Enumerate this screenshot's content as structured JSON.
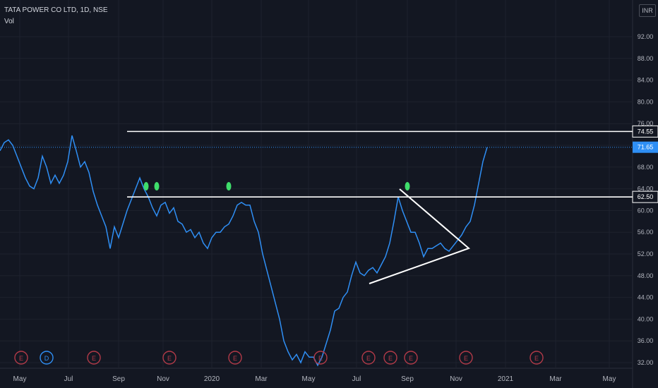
{
  "header": {
    "symbol_line": "TATA POWER CO LTD, 1D, NSE",
    "indicator": "Vol",
    "currency": "INR"
  },
  "colors": {
    "background": "#131722",
    "price_line": "#2f8ff5",
    "level_line": "#ffffff",
    "volume_up": "#0f5a4a",
    "volume_down": "#7a2a33",
    "signal_dot": "#3fdd6b",
    "event_red": "#b23a48",
    "event_blue": "#2f8ff5",
    "axis_text": "#b2b5be",
    "grid": "#1e222d"
  },
  "chart_data": {
    "type": "line",
    "title": "TATA POWER CO LTD, 1D, NSE",
    "xlabel": "",
    "ylabel": "",
    "y_ticks": [
      "92.00",
      "88.00",
      "84.00",
      "80.00",
      "76.00",
      "72.00",
      "68.00",
      "64.00",
      "60.00",
      "56.00",
      "52.00",
      "48.00",
      "44.00",
      "40.00",
      "36.00",
      "32.00"
    ],
    "x_ticks": [
      "May",
      "Jul",
      "Sep",
      "Nov",
      "2020",
      "Mar",
      "May",
      "Jul",
      "Sep",
      "Nov",
      "2021",
      "Mar",
      "May"
    ],
    "ylim": [
      30.8,
      96.0
    ],
    "grid": true,
    "price_labels": {
      "resistance": "74.55",
      "current": "71.65",
      "support": "62.50"
    },
    "series": [
      {
        "values": [
          [
            0.0,
            71.0
          ],
          [
            0.5,
            72.5
          ],
          [
            1.0,
            73.0
          ],
          [
            1.5,
            72.0
          ],
          [
            2.0,
            70.0
          ],
          [
            2.5,
            68.0
          ],
          [
            3.0,
            66.0
          ],
          [
            3.5,
            64.5
          ],
          [
            4.0,
            64.0
          ],
          [
            4.5,
            66.0
          ],
          [
            5.0,
            70.0
          ],
          [
            5.5,
            68.0
          ],
          [
            6.0,
            65.0
          ],
          [
            6.5,
            66.5
          ],
          [
            7.0,
            65.0
          ],
          [
            7.5,
            66.5
          ],
          [
            8.0,
            69.0
          ],
          [
            8.5,
            73.8
          ],
          [
            9.0,
            71.0
          ],
          [
            9.5,
            68.0
          ],
          [
            10.0,
            69.0
          ],
          [
            10.5,
            67.0
          ],
          [
            11.0,
            63.5
          ],
          [
            11.5,
            61.0
          ],
          [
            12.0,
            59.0
          ],
          [
            12.5,
            57.0
          ],
          [
            13.0,
            53.0
          ],
          [
            13.5,
            57.0
          ],
          [
            14.0,
            55.0
          ],
          [
            14.5,
            57.5
          ],
          [
            15.0,
            60.0
          ],
          [
            15.5,
            62.0
          ],
          [
            16.0,
            64.0
          ],
          [
            16.5,
            66.0
          ],
          [
            17.0,
            64.0
          ],
          [
            17.5,
            62.5
          ],
          [
            18.0,
            60.5
          ],
          [
            18.5,
            59.0
          ],
          [
            19.0,
            61.0
          ],
          [
            19.5,
            61.5
          ],
          [
            20.0,
            59.5
          ],
          [
            20.5,
            60.5
          ],
          [
            21.0,
            58.0
          ],
          [
            21.5,
            57.5
          ],
          [
            22.0,
            56.0
          ],
          [
            22.5,
            56.5
          ],
          [
            23.0,
            55.0
          ],
          [
            23.5,
            56.0
          ],
          [
            24.0,
            54.0
          ],
          [
            24.5,
            53.0
          ],
          [
            25.0,
            55.0
          ],
          [
            25.5,
            56.0
          ],
          [
            26.0,
            56.0
          ],
          [
            26.5,
            57.0
          ],
          [
            27.0,
            57.5
          ],
          [
            27.5,
            59.0
          ],
          [
            28.0,
            61.0
          ],
          [
            28.5,
            61.5
          ],
          [
            29.0,
            61.0
          ],
          [
            29.5,
            61.0
          ],
          [
            30.0,
            58.0
          ],
          [
            30.5,
            56.0
          ],
          [
            31.0,
            52.0
          ],
          [
            31.5,
            49.0
          ],
          [
            32.0,
            46.0
          ],
          [
            32.5,
            43.0
          ],
          [
            33.0,
            40.0
          ],
          [
            33.5,
            36.0
          ],
          [
            34.0,
            34.0
          ],
          [
            34.5,
            32.5
          ],
          [
            35.0,
            33.5
          ],
          [
            35.5,
            32.0
          ],
          [
            36.0,
            34.0
          ],
          [
            36.5,
            33.0
          ],
          [
            37.0,
            33.0
          ],
          [
            37.5,
            31.5
          ],
          [
            38.0,
            33.0
          ],
          [
            38.5,
            35.5
          ],
          [
            39.0,
            38.0
          ],
          [
            39.5,
            41.5
          ],
          [
            40.0,
            42.0
          ],
          [
            40.5,
            44.0
          ],
          [
            41.0,
            45.0
          ],
          [
            41.5,
            48.0
          ],
          [
            42.0,
            50.5
          ],
          [
            42.5,
            48.5
          ],
          [
            43.0,
            48.0
          ],
          [
            43.5,
            49.0
          ],
          [
            44.0,
            49.5
          ],
          [
            44.5,
            48.5
          ],
          [
            45.0,
            50.0
          ],
          [
            45.5,
            51.5
          ],
          [
            46.0,
            54.0
          ],
          [
            46.5,
            58.0
          ],
          [
            47.0,
            62.5
          ],
          [
            47.5,
            60.0
          ],
          [
            48.0,
            58.0
          ],
          [
            48.5,
            56.0
          ],
          [
            49.0,
            56.0
          ],
          [
            49.5,
            54.0
          ],
          [
            50.0,
            51.5
          ],
          [
            50.5,
            53.0
          ],
          [
            51.0,
            53.0
          ],
          [
            51.5,
            53.5
          ],
          [
            52.0,
            54.0
          ],
          [
            52.5,
            53.0
          ],
          [
            53.0,
            52.5
          ],
          [
            53.5,
            53.5
          ],
          [
            54.0,
            54.5
          ],
          [
            54.5,
            55.5
          ],
          [
            55.0,
            57.0
          ],
          [
            55.5,
            58.0
          ],
          [
            56.0,
            61.0
          ],
          [
            56.5,
            65.0
          ],
          [
            57.0,
            69.0
          ],
          [
            57.5,
            71.65
          ]
        ]
      }
    ],
    "x_index_note": "",
    "volume": [],
    "annotations": {
      "horizontal_levels": [
        74.55,
        62.5
      ],
      "triangle": [
        [
          1.0,
          0.0
        ],
        [
          0.0,
          0.0
        ],
        [
          0.0,
          0.0
        ]
      ],
      "signal_dot_prices": [
        64.5,
        64.5,
        64.5,
        64.5
      ],
      "events": [
        "E",
        "D",
        "E",
        "E",
        "E",
        "E",
        "E",
        "E",
        "E",
        "E",
        "E",
        "E"
      ]
    }
  }
}
